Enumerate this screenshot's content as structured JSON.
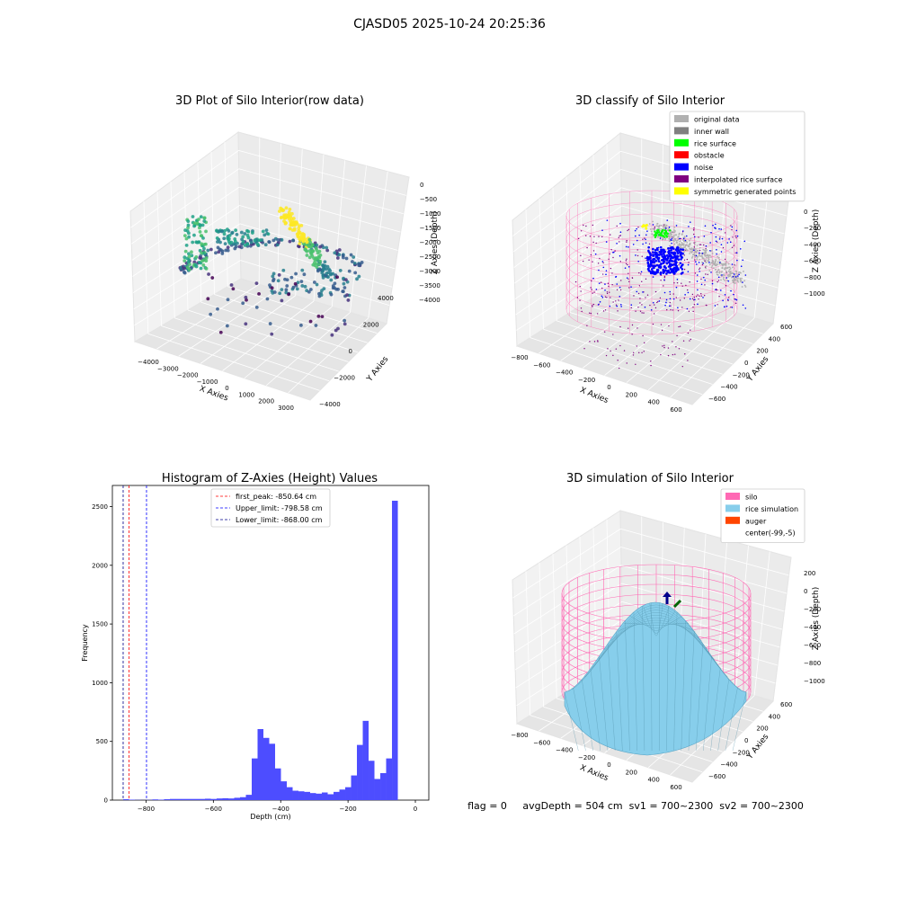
{
  "suptitle": "CJASD05 2025-10-24 20:25:36",
  "footer": "flag = 0     avgDepth = 504 cm  sv1 = 700~2300  sv2 = 700~2300",
  "chart_data": [
    {
      "type": "scatter",
      "projection": "3d",
      "title": "3D Plot of Silo Interior(row data)",
      "xlabel": "X Axies",
      "ylabel": "Y Axies",
      "zlabel": "Z Axies (Depth)",
      "x_ticks": [
        "−4000",
        "−3000",
        "−2000",
        "−1000",
        "0",
        "1000",
        "2000",
        "3000"
      ],
      "y_ticks": [
        "−4000",
        "−2000",
        "0",
        "2000",
        "4000"
      ],
      "z_ticks": [
        "0",
        "−500",
        "−1000",
        "−1500",
        "−2000",
        "−2500",
        "−3000",
        "−3500",
        "−4000"
      ],
      "colormap": "viridis",
      "grid": true
    },
    {
      "type": "scatter",
      "projection": "3d",
      "title": "3D classify of Silo Interior",
      "xlabel": "X Axies",
      "ylabel": "Y Axies",
      "zlabel": "Z Axies (Depth)",
      "x_ticks": [
        "−800",
        "−600",
        "−400",
        "−200",
        "0",
        "200",
        "400",
        "600"
      ],
      "y_ticks": [
        "−600",
        "−400",
        "−200",
        "0",
        "200",
        "400",
        "600"
      ],
      "z_ticks": [
        "0",
        "−200",
        "−400",
        "−600",
        "−800",
        "−1000"
      ],
      "legend_position": "top-right",
      "legend": [
        {
          "label": "original data",
          "color": "#b0b0b0"
        },
        {
          "label": "inner wall",
          "color": "#808080"
        },
        {
          "label": "rice surface",
          "color": "#00ff00"
        },
        {
          "label": "obstacle",
          "color": "#ff0000"
        },
        {
          "label": "noise",
          "color": "#0000ff"
        },
        {
          "label": "interpolated rice surface",
          "color": "#800080"
        },
        {
          "label": "symmetric generated points",
          "color": "#ffff00"
        }
      ],
      "grid": true
    },
    {
      "type": "bar",
      "title": "Histogram of Z-Axies (Height) Values",
      "xlabel": "Depth (cm)",
      "ylabel": "Frequency",
      "xlim": [
        -900,
        40
      ],
      "ylim": [
        0,
        2680
      ],
      "x_ticks": [
        -800,
        -600,
        -400,
        -200,
        0
      ],
      "x_tick_labels": [
        "−800",
        "−600",
        "−400",
        "−200",
        "0"
      ],
      "y_ticks": [
        0,
        500,
        1000,
        1500,
        2000,
        2500
      ],
      "bin_width": 17.36,
      "bar_color": "#4d4dff",
      "bins_left": [
        -868,
        -850.64,
        -833.28,
        -815.92,
        -798.56,
        -781.2,
        -763.84,
        -746.48,
        -729.12,
        -711.76,
        -694.4,
        -677.04,
        -659.68,
        -642.32,
        -624.96,
        -607.6,
        -590.24,
        -572.88,
        -555.52,
        -538.16,
        -520.8,
        -503.44,
        -486.08,
        -468.72,
        -451.36,
        -434,
        -416.64,
        -399.28,
        -381.92,
        -364.56,
        -347.2,
        -329.84,
        -312.48,
        -295.12,
        -277.76,
        -260.4,
        -243.04,
        -225.68,
        -208.32,
        -190.96,
        -173.6,
        -156.24,
        -138.88,
        -121.52,
        -104.16,
        -86.8,
        -69.44,
        -52.08,
        -34.72,
        -17.36
      ],
      "counts": [
        8,
        4,
        2,
        1,
        2,
        6,
        4,
        8,
        10,
        10,
        10,
        10,
        10,
        10,
        12,
        10,
        14,
        16,
        14,
        20,
        25,
        45,
        355,
        605,
        530,
        480,
        270,
        160,
        110,
        80,
        75,
        70,
        60,
        55,
        65,
        50,
        70,
        90,
        110,
        210,
        470,
        675,
        335,
        180,
        230,
        355,
        2550,
        0,
        0,
        0
      ],
      "vlines": [
        {
          "label": "first_peak: -850.64 cm",
          "x": -850.64,
          "color": "#ff0000"
        },
        {
          "label": "Upper_limit: -798.58 cm",
          "x": -798.58,
          "color": "#0000ff"
        },
        {
          "label": "Lower_limit: -868.00 cm",
          "x": -868.0,
          "color": "#00008b"
        }
      ],
      "legend_position": "top-center"
    },
    {
      "type": "surface",
      "projection": "3d",
      "title": "3D simulation of Silo Interior",
      "xlabel": "X Axies",
      "ylabel": "Y Axies",
      "zlabel": "Z Axies (Depth)",
      "x_ticks": [
        "−800",
        "−600",
        "−400",
        "−200",
        "0",
        "200",
        "400",
        "600"
      ],
      "y_ticks": [
        "−600",
        "−400",
        "−200",
        "0",
        "200",
        "400",
        "600"
      ],
      "z_ticks": [
        "200",
        "0",
        "−200",
        "−400",
        "−600",
        "−800",
        "−1000"
      ],
      "legend_position": "top-right",
      "legend": [
        {
          "label": "silo",
          "color": "#ff69b4"
        },
        {
          "label": "rice simulation",
          "color": "#87ceeb"
        },
        {
          "label": "auger",
          "color": "#ff4500"
        },
        {
          "label": "center(-99,-5)",
          "color": "#ffffff"
        }
      ],
      "grid": true
    }
  ]
}
